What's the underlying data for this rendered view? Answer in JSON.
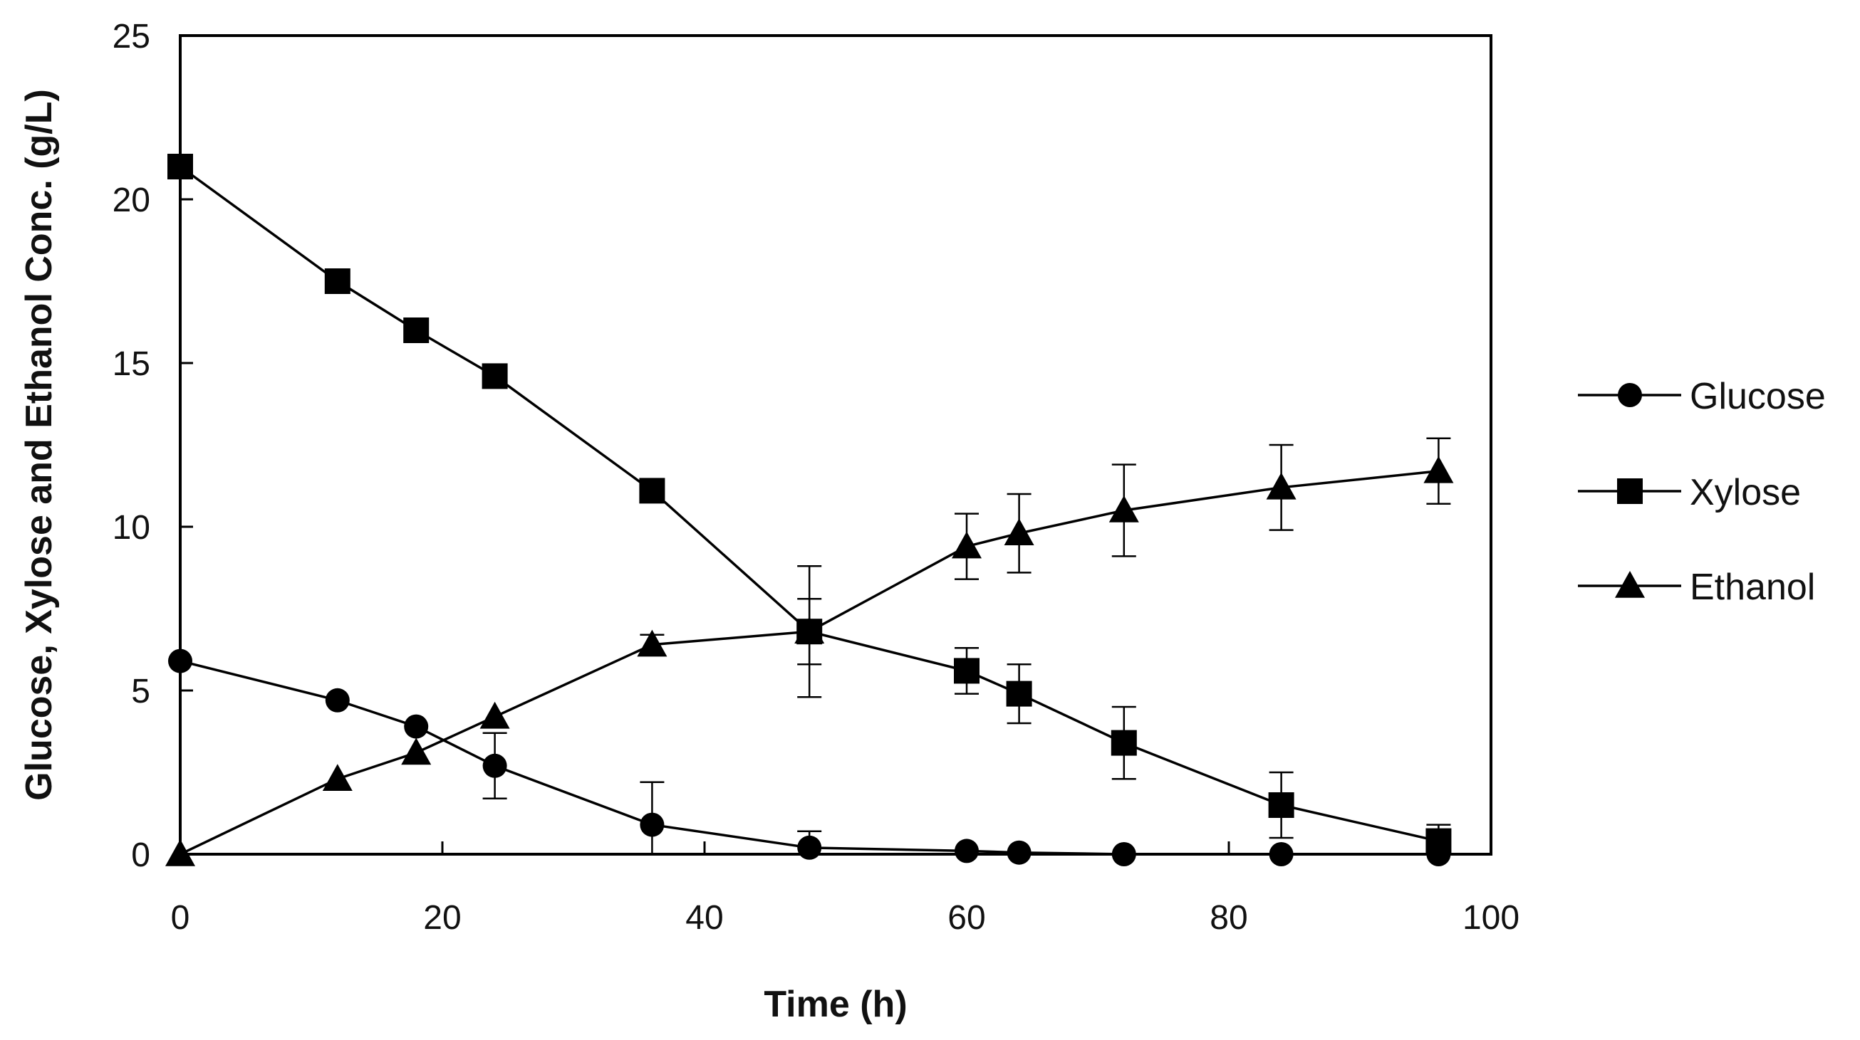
{
  "chart_data": {
    "type": "line",
    "title": "",
    "xlabel": "Time (h)",
    "ylabel": "Glucose, Xylose and Ethanol Conc. (g/L)",
    "xlim": [
      0,
      100
    ],
    "ylim": [
      0,
      25
    ],
    "xticks": [
      0,
      20,
      40,
      60,
      80,
      100
    ],
    "yticks": [
      0,
      5,
      10,
      15,
      20,
      25
    ],
    "grid": false,
    "legend_position": "right",
    "series": [
      {
        "name": "Glucose",
        "marker": "circle",
        "x": [
          0,
          12,
          18,
          24,
          36,
          48,
          60,
          64,
          72,
          84,
          96
        ],
        "y": [
          5.9,
          4.7,
          3.9,
          2.7,
          0.9,
          0.2,
          0.1,
          0.05,
          0.0,
          0.0,
          0.0
        ],
        "err": [
          0,
          0,
          0,
          1.0,
          1.3,
          0.5,
          0,
          0,
          0,
          0,
          0
        ]
      },
      {
        "name": "Xylose",
        "marker": "square",
        "x": [
          0,
          12,
          18,
          24,
          36,
          48,
          60,
          64,
          72,
          84,
          96
        ],
        "y": [
          21.0,
          17.5,
          16.0,
          14.6,
          11.1,
          6.8,
          5.6,
          4.9,
          3.4,
          1.5,
          0.4
        ],
        "err": [
          0,
          0,
          0,
          0,
          0,
          1.0,
          0.7,
          0.9,
          1.1,
          1.0,
          0.5
        ]
      },
      {
        "name": "Ethanol",
        "marker": "triangle",
        "x": [
          0,
          12,
          18,
          24,
          36,
          48,
          60,
          64,
          72,
          84,
          96
        ],
        "y": [
          0.0,
          2.3,
          3.1,
          4.2,
          6.4,
          6.8,
          9.4,
          9.8,
          10.5,
          11.2,
          11.7
        ],
        "err": [
          0,
          0,
          0,
          0,
          0.3,
          2.0,
          1.0,
          1.2,
          1.4,
          1.3,
          1.0
        ]
      }
    ]
  }
}
